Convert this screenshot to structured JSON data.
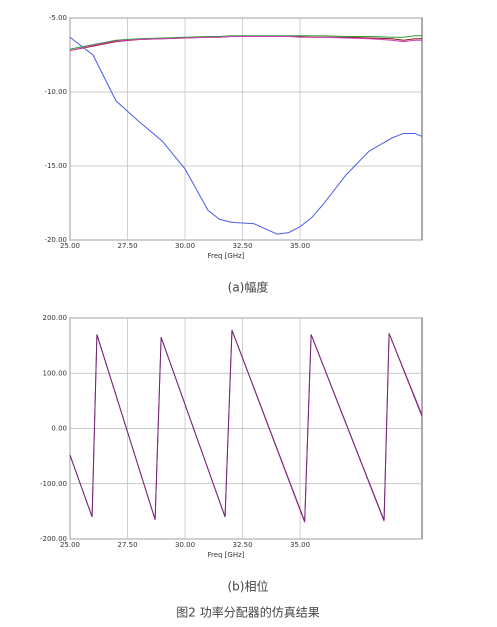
{
  "chart_data": [
    {
      "type": "line",
      "x_label": "Freq [GHz]",
      "caption": "(a)幅度",
      "x": [
        25,
        26,
        27,
        28,
        29,
        30,
        31,
        31.5,
        32,
        33,
        34,
        34.5,
        35,
        35.5,
        36,
        37,
        38,
        39,
        39.5,
        40,
        40.3
      ],
      "series": [
        {
          "color": "#4a5ee8",
          "values": [
            -6.3,
            -7.5,
            -10.6,
            -12.0,
            -13.3,
            -15.2,
            -18.0,
            -18.6,
            -18.8,
            -18.9,
            -19.6,
            -19.5,
            -19.1,
            -18.5,
            -17.6,
            -15.6,
            -14.0,
            -13.1,
            -12.8,
            -12.8,
            -13.0
          ]
        },
        {
          "color": "#8b1a1a",
          "values": [
            -7.2,
            -6.9,
            -6.6,
            -6.45,
            -6.4,
            -6.35,
            -6.3,
            -6.3,
            -6.25,
            -6.25,
            -6.25,
            -6.25,
            -6.25,
            -6.3,
            -6.3,
            -6.3,
            -6.35,
            -6.4,
            -6.5,
            -6.4,
            -6.4
          ]
        },
        {
          "color": "#2e9e3a",
          "values": [
            -7.1,
            -6.8,
            -6.5,
            -6.4,
            -6.35,
            -6.3,
            -6.25,
            -6.25,
            -6.2,
            -6.2,
            -6.2,
            -6.2,
            -6.2,
            -6.2,
            -6.2,
            -6.25,
            -6.25,
            -6.3,
            -6.3,
            -6.2,
            -6.2
          ]
        },
        {
          "color": "#d43fb4",
          "values": [
            -7.2,
            -6.85,
            -6.55,
            -6.45,
            -6.4,
            -6.35,
            -6.3,
            -6.3,
            -6.25,
            -6.25,
            -6.25,
            -6.25,
            -6.3,
            -6.3,
            -6.3,
            -6.35,
            -6.4,
            -6.5,
            -6.6,
            -6.5,
            -6.5
          ]
        }
      ],
      "xlim": [
        25,
        40.3
      ],
      "ylim": [
        -20,
        -5
      ],
      "xticks": [
        {
          "value": 25,
          "label": "25.00"
        },
        {
          "value": 27.5,
          "label": "27.50"
        },
        {
          "value": 30,
          "label": "30.00"
        },
        {
          "value": 32.5,
          "label": "32.50"
        },
        {
          "value": 35,
          "label": "35.00"
        }
      ],
      "yticks": [
        {
          "value": -5,
          "label": "-5.00"
        },
        {
          "value": -10,
          "label": "-10.00"
        },
        {
          "value": -15,
          "label": "-15.00"
        },
        {
          "value": -20,
          "label": "-20.00"
        }
      ],
      "grid": true
    },
    {
      "type": "line",
      "x_label": "Freq [GHz]",
      "caption": "(b)相位",
      "x": [
        25,
        25.96,
        26.17,
        28.7,
        28.96,
        31.74,
        32.04,
        35.2,
        35.48,
        38.65,
        38.87,
        40.3
      ],
      "series": [
        {
          "color": "#e040c0",
          "values": [
            -48,
            -160,
            170,
            -165,
            165,
            -160,
            178,
            -170,
            170,
            -168,
            172,
            25
          ]
        },
        {
          "color": "#6a2a70",
          "values": [
            -48,
            -160,
            170,
            -165,
            165,
            -160,
            178,
            -168,
            170,
            -166,
            172,
            22
          ]
        }
      ],
      "xlim": [
        25,
        40.3
      ],
      "ylim": [
        -200,
        200
      ],
      "xticks": [
        {
          "value": 25,
          "label": "25.00"
        },
        {
          "value": 27.5,
          "label": "27.50"
        },
        {
          "value": 30,
          "label": "30.00"
        },
        {
          "value": 32.5,
          "label": "32.50"
        },
        {
          "value": 35,
          "label": "35.00"
        }
      ],
      "yticks": [
        {
          "value": 200,
          "label": "200.00"
        },
        {
          "value": 100,
          "label": "100.00"
        },
        {
          "value": 0,
          "label": "0.00"
        },
        {
          "value": -100,
          "label": "-100.00"
        },
        {
          "value": -200,
          "label": "-200.00"
        }
      ],
      "grid": true
    }
  ],
  "figure_caption": "图2 功率分配器的仿真结果"
}
